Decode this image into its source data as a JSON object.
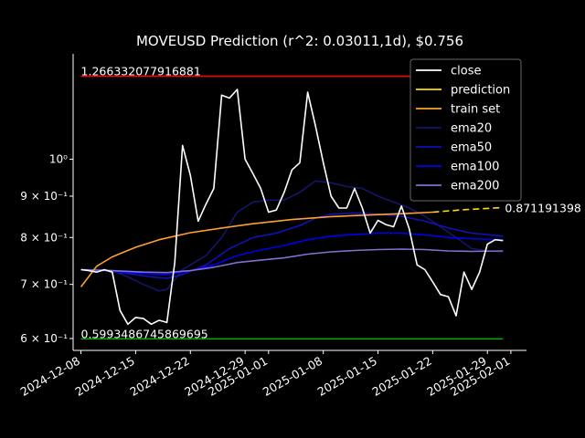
{
  "chart_data": {
    "type": "line",
    "title": "MOVEUSD Prediction (r^2: 0.03011,1d), $0.756",
    "xlabel": "",
    "ylabel": "",
    "yscale": "log",
    "xlim": [
      "2024-12-07",
      "2025-02-03"
    ],
    "ylim": [
      0.58,
      1.35
    ],
    "grid": false,
    "legend_position": "top-right",
    "x_ticks": [
      "2024-12-08",
      "2024-12-15",
      "2024-12-22",
      "2024-12-29",
      "2025-01-01",
      "2025-01-08",
      "2025-01-15",
      "2025-01-22",
      "2025-01-29",
      "2025-02-01"
    ],
    "y_ticks": [
      {
        "value": 0.6,
        "label": "6 × 10⁻¹"
      },
      {
        "value": 0.7,
        "label": "7 × 10⁻¹"
      },
      {
        "value": 0.8,
        "label": "8 × 10⁻¹"
      },
      {
        "value": 0.9,
        "label": "9 × 10⁻¹"
      },
      {
        "value": 1.0,
        "label": "10⁰"
      }
    ],
    "hlines": [
      {
        "value": 1.266332077916881,
        "label": "1.266332077916881",
        "color": "#ff0000"
      },
      {
        "value": 0.5993486745869695,
        "label": "0.5993486745869695",
        "color": "#00aa00"
      }
    ],
    "end_annotation": "0.871191398",
    "series": [
      {
        "name": "close",
        "color": "#ffffff",
        "x": [
          "2024-12-08",
          "2024-12-09",
          "2024-12-10",
          "2024-12-11",
          "2024-12-12",
          "2024-12-13",
          "2024-12-14",
          "2024-12-15",
          "2024-12-16",
          "2024-12-17",
          "2024-12-18",
          "2024-12-19",
          "2024-12-20",
          "2024-12-21",
          "2024-12-22",
          "2024-12-23",
          "2024-12-24",
          "2024-12-25",
          "2024-12-26",
          "2024-12-27",
          "2024-12-28",
          "2024-12-29",
          "2024-12-30",
          "2024-12-31",
          "2025-01-01",
          "2025-01-02",
          "2025-01-03",
          "2025-01-04",
          "2025-01-05",
          "2025-01-06",
          "2025-01-07",
          "2025-01-08",
          "2025-01-09",
          "2025-01-10",
          "2025-01-11",
          "2025-01-12",
          "2025-01-13",
          "2025-01-14",
          "2025-01-15",
          "2025-01-16",
          "2025-01-17",
          "2025-01-18",
          "2025-01-19",
          "2025-01-20",
          "2025-01-21",
          "2025-01-22",
          "2025-01-23",
          "2025-01-24",
          "2025-01-25",
          "2025-01-26",
          "2025-01-27",
          "2025-01-28",
          "2025-01-29",
          "2025-01-30",
          "2025-01-31"
        ],
        "values": [
          0.73,
          0.728,
          0.725,
          0.73,
          0.725,
          0.65,
          0.625,
          0.637,
          0.635,
          0.625,
          0.632,
          0.628,
          0.745,
          1.04,
          0.955,
          0.838,
          0.88,
          0.92,
          1.2,
          1.19,
          1.22,
          1.0,
          0.96,
          0.92,
          0.86,
          0.865,
          0.91,
          0.97,
          0.99,
          1.21,
          1.1,
          0.99,
          0.9,
          0.87,
          0.87,
          0.92,
          0.87,
          0.81,
          0.84,
          0.83,
          0.825,
          0.875,
          0.82,
          0.74,
          0.73,
          0.705,
          0.68,
          0.676,
          0.64,
          0.725,
          0.69,
          0.725,
          0.785,
          0.795,
          0.793
        ]
      },
      {
        "name": "prediction",
        "color": "#ffdd00",
        "x": [
          "2025-01-22",
          "2025-01-26",
          "2025-01-31"
        ],
        "values": [
          0.86,
          0.866,
          0.8712
        ]
      },
      {
        "name": "train set",
        "color": "#ffa030",
        "x": [
          "2024-12-08",
          "2024-12-10",
          "2024-12-12",
          "2024-12-15",
          "2024-12-18",
          "2024-12-22",
          "2024-12-26",
          "2024-12-30",
          "2025-01-04",
          "2025-01-09",
          "2025-01-14",
          "2025-01-19",
          "2025-01-22"
        ],
        "values": [
          0.695,
          0.737,
          0.757,
          0.778,
          0.795,
          0.811,
          0.822,
          0.832,
          0.842,
          0.849,
          0.853,
          0.857,
          0.86
        ]
      },
      {
        "name": "ema20",
        "color": "#15156b",
        "x": [
          "2024-12-08",
          "2024-12-10",
          "2024-12-12",
          "2024-12-14",
          "2024-12-16",
          "2024-12-18",
          "2024-12-19",
          "2024-12-20",
          "2024-12-21",
          "2024-12-22",
          "2024-12-24",
          "2024-12-26",
          "2024-12-28",
          "2024-12-30",
          "2025-01-01",
          "2025-01-03",
          "2025-01-05",
          "2025-01-06",
          "2025-01-07",
          "2025-01-09",
          "2025-01-11",
          "2025-01-13",
          "2025-01-15",
          "2025-01-17",
          "2025-01-19",
          "2025-01-21",
          "2025-01-23",
          "2025-01-25",
          "2025-01-27",
          "2025-01-29",
          "2025-01-31"
        ],
        "values": [
          0.73,
          0.73,
          0.728,
          0.715,
          0.7,
          0.687,
          0.69,
          0.71,
          0.73,
          0.74,
          0.76,
          0.8,
          0.86,
          0.885,
          0.89,
          0.89,
          0.91,
          0.925,
          0.94,
          0.935,
          0.925,
          0.92,
          0.9,
          0.885,
          0.87,
          0.85,
          0.825,
          0.8,
          0.775,
          0.77,
          0.768
        ]
      },
      {
        "name": "ema50",
        "color": "#1111bb",
        "x": [
          "2024-12-08",
          "2024-12-11",
          "2024-12-14",
          "2024-12-17",
          "2024-12-19",
          "2024-12-21",
          "2024-12-24",
          "2024-12-27",
          "2024-12-30",
          "2025-01-02",
          "2025-01-05",
          "2025-01-07",
          "2025-01-09",
          "2025-01-12",
          "2025-01-15",
          "2025-01-18",
          "2025-01-21",
          "2025-01-24",
          "2025-01-27",
          "2025-01-31"
        ],
        "values": [
          0.73,
          0.728,
          0.722,
          0.715,
          0.712,
          0.72,
          0.74,
          0.775,
          0.8,
          0.81,
          0.828,
          0.845,
          0.855,
          0.858,
          0.855,
          0.85,
          0.838,
          0.822,
          0.81,
          0.803
        ]
      },
      {
        "name": "ema100",
        "color": "#0000ee",
        "x": [
          "2024-12-08",
          "2024-12-12",
          "2024-12-16",
          "2024-12-19",
          "2024-12-22",
          "2024-12-25",
          "2024-12-28",
          "2024-12-31",
          "2025-01-03",
          "2025-01-06",
          "2025-01-09",
          "2025-01-12",
          "2025-01-15",
          "2025-01-18",
          "2025-01-21",
          "2025-01-24",
          "2025-01-27",
          "2025-01-31"
        ],
        "values": [
          0.73,
          0.727,
          0.722,
          0.72,
          0.728,
          0.74,
          0.76,
          0.772,
          0.782,
          0.795,
          0.803,
          0.807,
          0.81,
          0.81,
          0.806,
          0.8,
          0.797,
          0.795
        ]
      },
      {
        "name": "ema200",
        "color": "#8070d0",
        "x": [
          "2024-12-08",
          "2024-12-12",
          "2024-12-16",
          "2024-12-19",
          "2024-12-22",
          "2024-12-25",
          "2024-12-28",
          "2024-12-31",
          "2025-01-03",
          "2025-01-06",
          "2025-01-09",
          "2025-01-12",
          "2025-01-15",
          "2025-01-18",
          "2025-01-21",
          "2025-01-24",
          "2025-01-27",
          "2025-01-31"
        ],
        "values": [
          0.73,
          0.728,
          0.725,
          0.724,
          0.728,
          0.735,
          0.745,
          0.75,
          0.755,
          0.763,
          0.768,
          0.771,
          0.773,
          0.774,
          0.773,
          0.77,
          0.769,
          0.77
        ]
      }
    ]
  }
}
